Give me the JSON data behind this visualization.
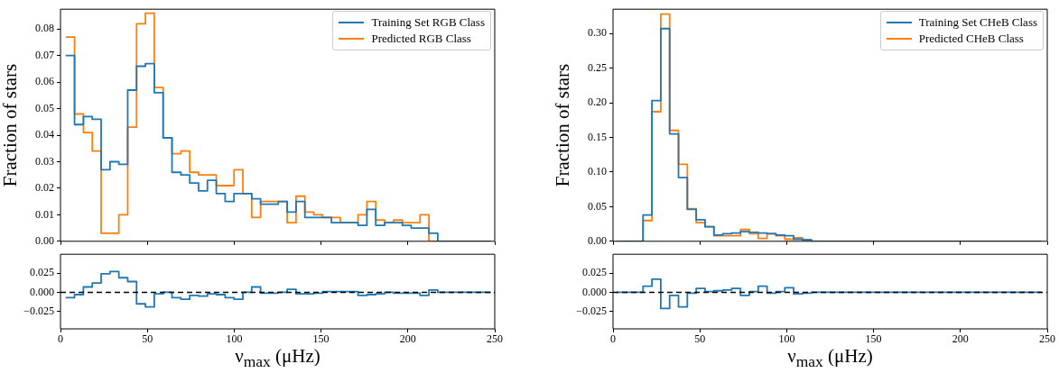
{
  "chart_data": [
    {
      "type": "histogram",
      "ylabel": "Fraction of stars",
      "legend": "top right",
      "tick_labels": "y",
      "bins": [
        3,
        8.1,
        13.2,
        18.3,
        23.4,
        28.5,
        33.6,
        38.7,
        43.8,
        48.9,
        54,
        59.1,
        64.2,
        69.3,
        74.4,
        79.5,
        84.6,
        89.7,
        94.8,
        99.9,
        105,
        110.1,
        115.2,
        120.3,
        125.4,
        130.5,
        135.6,
        140.7,
        145.8,
        150.9,
        156,
        161.1,
        166.2,
        171.3,
        176.4,
        181.5,
        186.6,
        191.7,
        196.8,
        201.9,
        207,
        212.1,
        217.2,
        222.3,
        227.4,
        232.5,
        237.6,
        242.7,
        247.8
      ],
      "series": [
        {
          "name": "Training Set RGB Class",
          "color": "#1f77b4",
          "values": [
            0.07,
            0.044,
            0.047,
            0.046,
            0.027,
            0.03,
            0.029,
            0.057,
            0.066,
            0.067,
            0.056,
            0.039,
            0.026,
            0.025,
            0.022,
            0.019,
            0.023,
            0.018,
            0.015,
            0.018,
            0.018,
            0.016,
            0.014,
            0.014,
            0.015,
            0.011,
            0.015,
            0.009,
            0.009,
            0.009,
            0.007,
            0.007,
            0.007,
            0.006,
            0.012,
            0.006,
            0.007,
            0.007,
            0.006,
            0.005,
            0.005,
            0.003,
            0,
            0,
            0,
            0,
            0,
            0
          ]
        },
        {
          "name": "Predicted RGB Class",
          "color": "#ff7f0e",
          "values": [
            0.077,
            0.048,
            0.041,
            0.034,
            0.003,
            0.003,
            0.01,
            0.043,
            0.082,
            0.086,
            0.058,
            0.039,
            0.033,
            0.034,
            0.026,
            0.025,
            0.025,
            0.021,
            0.021,
            0.027,
            0.018,
            0.009,
            0.015,
            0.015,
            0.015,
            0.007,
            0.017,
            0.011,
            0.01,
            0.009,
            0.009,
            0.007,
            0.007,
            0.01,
            0.015,
            0.008,
            0.007,
            0.008,
            0.007,
            0.007,
            0.01,
            0,
            0,
            0,
            0,
            0,
            0,
            0
          ]
        }
      ],
      "xlim": [
        0,
        250
      ],
      "xticks": [
        0,
        50,
        100,
        150,
        200,
        250
      ],
      "ylim": [
        0,
        0.0875
      ],
      "yticks": [
        {
          "value": 0,
          "label": "0.00"
        },
        {
          "value": 0.01,
          "label": "0.01"
        },
        {
          "value": 0.02,
          "label": "0.02"
        },
        {
          "value": 0.03,
          "label": "0.03"
        },
        {
          "value": 0.04,
          "label": "0.04"
        },
        {
          "value": 0.05,
          "label": "0.05"
        },
        {
          "value": 0.06,
          "label": "0.06"
        },
        {
          "value": 0.07,
          "label": "0.07"
        },
        {
          "value": 0.08,
          "label": "0.08"
        }
      ]
    },
    {
      "type": "histogram",
      "xlabel": "ν$_{max}$ (μHz)",
      "bins": [
        3,
        8.1,
        13.2,
        18.3,
        23.4,
        28.5,
        33.6,
        38.7,
        43.8,
        48.9,
        54,
        59.1,
        64.2,
        69.3,
        74.4,
        79.5,
        84.6,
        89.7,
        94.8,
        99.9,
        105,
        110.1,
        115.2,
        120.3,
        125.4,
        130.5,
        135.6,
        140.7,
        145.8,
        150.9,
        156,
        161.1,
        166.2,
        171.3,
        176.4,
        181.5,
        186.6,
        191.7,
        196.8,
        201.9,
        207,
        212.1,
        217.2,
        222.3,
        227.4,
        232.5,
        237.6,
        242.7,
        247.8
      ],
      "series": [
        {
          "color": "#1f77b4",
          "values": [
            -0.007,
            -0.003,
            0.007,
            0.012,
            0.024,
            0.027,
            0.019,
            0.014,
            -0.015,
            -0.019,
            -0.002,
            0.0,
            -0.007,
            -0.009,
            -0.004,
            -0.005,
            -0.002,
            -0.003,
            -0.007,
            -0.009,
            0,
            0.007,
            -0.001,
            -0.001,
            0.0,
            0.004,
            -0.002,
            -0.002,
            -0.001,
            0.001,
            0.001,
            0.001,
            0.001,
            -0.004,
            -0.003,
            -0.002,
            0.0,
            -0.001,
            -0.001,
            -0.001,
            -0.004,
            0.003,
            0,
            0,
            0,
            0,
            0,
            0
          ]
        }
      ],
      "ref_lines": [
        {
          "axis": "y",
          "value": 0,
          "color": "#000000",
          "line_style": "dashed"
        }
      ],
      "xlim": [
        0,
        250
      ],
      "xticks": [
        0,
        50,
        100,
        150,
        200,
        250
      ],
      "ylim": [
        -0.0475,
        0.0495
      ],
      "yticks": [
        {
          "value": -0.025,
          "label": "−0.025"
        },
        {
          "value": 0,
          "label": "0.000"
        },
        {
          "value": 0.025,
          "label": "0.025"
        }
      ]
    },
    {
      "type": "histogram",
      "ylabel": "Fraction of stars",
      "legend": "top right",
      "tick_labels": "y",
      "bins": [
        2,
        7.1,
        12.2,
        17.3,
        22.4,
        27.5,
        32.6,
        37.7,
        42.8,
        47.9,
        53,
        58.1,
        63.2,
        68.3,
        73.4,
        78.5,
        83.6,
        88.7,
        93.8,
        98.9,
        104,
        109.1,
        114.2,
        119.3,
        124.4,
        129.5,
        134.6,
        139.7,
        144.8,
        149.9,
        155,
        160.1,
        165.2,
        170.3,
        175.4,
        180.5,
        185.6,
        190.7,
        195.8,
        200.9,
        206,
        211.1,
        216.2,
        221.3,
        226.4,
        231.5,
        236.6,
        241.7,
        246.8
      ],
      "series": [
        {
          "name": "Training Set CHeB Class",
          "color": "#1f77b4",
          "values": [
            0,
            0,
            0,
            0.038,
            0.203,
            0.307,
            0.155,
            0.092,
            0.046,
            0.031,
            0.021,
            0.009,
            0.011,
            0.012,
            0.014,
            0.013,
            0.012,
            0.011,
            0.009,
            0.008,
            0.003,
            0.002,
            0,
            0,
            0,
            0,
            0,
            0,
            0,
            0,
            0,
            0,
            0,
            0,
            0,
            0,
            0,
            0,
            0,
            0,
            0,
            0,
            0,
            0,
            0,
            0,
            0,
            0
          ]
        },
        {
          "name": "Predicted CHeB Class",
          "color": "#ff7f0e",
          "values": [
            0,
            0,
            0,
            0.03,
            0.187,
            0.328,
            0.16,
            0.111,
            0.047,
            0.027,
            0.021,
            0.008,
            0.008,
            0.008,
            0.017,
            0.011,
            0.004,
            0.011,
            0.008,
            0.003,
            0.005,
            0.002,
            0,
            0,
            0,
            0,
            0,
            0,
            0,
            0,
            0,
            0,
            0,
            0,
            0,
            0,
            0,
            0,
            0,
            0,
            0,
            0,
            0,
            0,
            0,
            0,
            0,
            0
          ]
        }
      ],
      "xlim": [
        0,
        250
      ],
      "xticks": [
        0,
        50,
        100,
        150,
        200,
        250
      ],
      "ylim": [
        0,
        0.335
      ],
      "yticks": [
        {
          "value": 0,
          "label": "0.00"
        },
        {
          "value": 0.05,
          "label": "0.05"
        },
        {
          "value": 0.1,
          "label": "0.10"
        },
        {
          "value": 0.15,
          "label": "0.15"
        },
        {
          "value": 0.2,
          "label": "0.20"
        },
        {
          "value": 0.25,
          "label": "0.25"
        },
        {
          "value": 0.3,
          "label": "0.30"
        }
      ]
    },
    {
      "type": "histogram",
      "xlabel": "ν$_{max}$ (μHz)",
      "bins": [
        2,
        7.1,
        12.2,
        17.3,
        22.4,
        27.5,
        32.6,
        37.7,
        42.8,
        47.9,
        53,
        58.1,
        63.2,
        68.3,
        73.4,
        78.5,
        83.6,
        88.7,
        93.8,
        98.9,
        104,
        109.1,
        114.2,
        119.3,
        124.4,
        129.5,
        134.6,
        139.7,
        144.8,
        149.9,
        155,
        160.1,
        165.2,
        170.3,
        175.4,
        180.5,
        185.6,
        190.7,
        195.8,
        200.9,
        206,
        211.1,
        216.2,
        221.3,
        226.4,
        231.5,
        236.6,
        241.7,
        246.8
      ],
      "series": [
        {
          "color": "#1f77b4",
          "values": [
            0,
            0,
            0,
            0.008,
            0.017,
            -0.021,
            -0.004,
            -0.019,
            -0.001,
            0.005,
            0.001,
            0.002,
            0.003,
            0.005,
            -0.004,
            0.001,
            0.008,
            -0.001,
            0.001,
            0.006,
            -0.002,
            -0.001,
            0,
            0,
            0,
            0,
            0,
            0,
            0,
            0,
            0,
            0,
            0,
            0,
            0,
            0,
            0,
            0,
            0,
            0,
            0,
            0,
            0,
            0,
            0,
            0,
            0,
            0
          ]
        }
      ],
      "ref_lines": [
        {
          "axis": "y",
          "value": 0,
          "color": "#000000",
          "line_style": "dashed"
        }
      ],
      "xlim": [
        0,
        250
      ],
      "xticks": [
        0,
        50,
        100,
        150,
        200,
        250
      ],
      "ylim": [
        -0.0475,
        0.0495
      ],
      "yticks": [
        {
          "value": -0.025,
          "label": "−0.025"
        },
        {
          "value": 0,
          "label": "0.000"
        },
        {
          "value": 0.025,
          "label": "0.025"
        }
      ]
    }
  ]
}
